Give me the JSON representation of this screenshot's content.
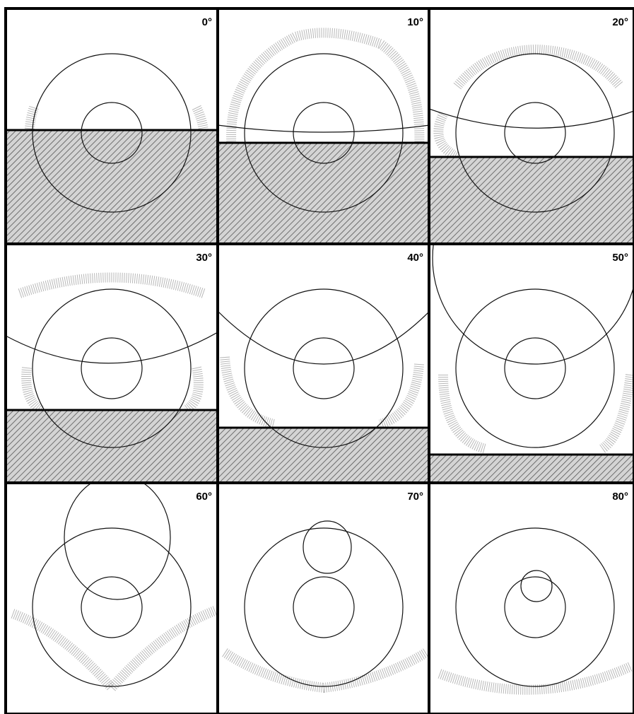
{
  "panels": [
    {
      "label": "0°"
    },
    {
      "label": "10°"
    },
    {
      "label": "20°"
    },
    {
      "label": "30°"
    },
    {
      "label": "40°"
    },
    {
      "label": "50°"
    },
    {
      "label": "60°"
    },
    {
      "label": "70°"
    },
    {
      "label": "80°"
    }
  ]
}
